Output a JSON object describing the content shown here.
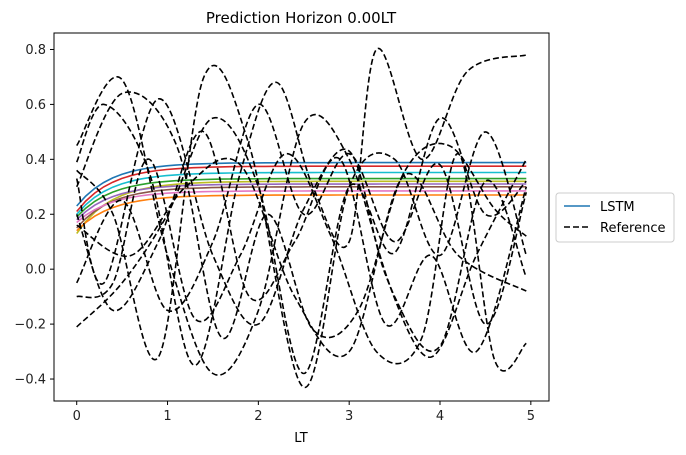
{
  "chart_data": {
    "type": "line",
    "title": "Prediction Horizon 0.00LT",
    "xlabel": "LT",
    "ylabel": "",
    "xlim": [
      -0.25,
      5.2
    ],
    "ylim": [
      -0.48,
      0.86
    ],
    "xticks": [
      0,
      1,
      2,
      3,
      4,
      5
    ],
    "yticks": [
      -0.4,
      -0.2,
      0.0,
      0.2,
      0.4,
      0.6,
      0.8
    ],
    "legend_position": "center-right-outside",
    "legend": [
      {
        "label": "LSTM",
        "color": "#1f77b4",
        "style": "solid"
      },
      {
        "label": "Reference",
        "color": "#000000",
        "style": "dashed"
      }
    ],
    "lstm_series": [
      {
        "color": "#1f77b4",
        "start": 0.23,
        "end": 0.388
      },
      {
        "color": "#d62728",
        "start": 0.21,
        "end": 0.375
      },
      {
        "color": "#17becf",
        "start": 0.2,
        "end": 0.352
      },
      {
        "color": "#2ca02c",
        "start": 0.19,
        "end": 0.33
      },
      {
        "color": "#bcbd22",
        "start": 0.13,
        "end": 0.32
      },
      {
        "color": "#9467bd",
        "start": 0.18,
        "end": 0.31
      },
      {
        "color": "#8c564b",
        "start": 0.15,
        "end": 0.3
      },
      {
        "color": "#e377c2",
        "start": 0.17,
        "end": 0.285
      },
      {
        "color": "#ff7f0e",
        "start": 0.14,
        "end": 0.27
      }
    ],
    "reference_series": [
      {
        "x": [
          0,
          0.5,
          1,
          1.5,
          2,
          2.5,
          3,
          3.5,
          4,
          4.5,
          4.95
        ],
        "y": [
          0.45,
          0.69,
          0.05,
          -0.38,
          -0.15,
          0.53,
          0.4,
          -0.1,
          -0.28,
          0.32,
          -0.03
        ]
      },
      {
        "x": [
          0,
          0.3,
          0.8,
          1.3,
          1.8,
          2.2,
          2.6,
          3.0,
          3.3,
          3.8,
          4.3,
          4.95
        ],
        "y": [
          0.39,
          0.6,
          0.35,
          -0.35,
          0.35,
          0.68,
          0.3,
          0.1,
          0.8,
          0.4,
          0.72,
          0.78
        ]
      },
      {
        "x": [
          0,
          0.4,
          0.9,
          1.4,
          1.9,
          2.5,
          3.0,
          3.5,
          4.0,
          4.5,
          4.95
        ],
        "y": [
          0.36,
          0.2,
          -0.32,
          0.7,
          0.45,
          -0.43,
          0.3,
          0.4,
          0.05,
          0.5,
          0.05
        ]
      },
      {
        "x": [
          0,
          0.3,
          0.9,
          1.5,
          2.0,
          2.5,
          3.0,
          3.4,
          3.9,
          4.4,
          4.95
        ],
        "y": [
          0.33,
          -0.05,
          0.62,
          0.05,
          -0.2,
          0.22,
          0.43,
          -0.02,
          -0.32,
          0.05,
          0.4
        ]
      },
      {
        "x": [
          0,
          0.5,
          1.0,
          1.5,
          2.0,
          2.5,
          3.0,
          3.5,
          4.0,
          4.5,
          4.95
        ],
        "y": [
          -0.21,
          -0.05,
          0.2,
          0.55,
          0.3,
          -0.38,
          0.3,
          0.06,
          0.55,
          0.2,
          0.32
        ]
      },
      {
        "x": [
          0,
          0.4,
          0.8,
          1.3,
          1.8,
          2.3,
          2.8,
          3.3,
          3.8,
          4.2,
          4.6,
          4.95
        ],
        "y": [
          -0.1,
          -0.05,
          0.4,
          -0.18,
          0.05,
          0.42,
          0.12,
          -0.3,
          -0.25,
          0.42,
          -0.33,
          -0.27
        ]
      },
      {
        "x": [
          0,
          0.5,
          1.0,
          1.5,
          2.0,
          2.5,
          3.0,
          3.5,
          4.0,
          4.5,
          4.95
        ],
        "y": [
          -0.05,
          0.25,
          -0.15,
          0.1,
          0.6,
          0.2,
          0.42,
          0.1,
          0.38,
          -0.2,
          0.28
        ]
      },
      {
        "x": [
          0,
          0.6,
          1.2,
          1.8,
          2.4,
          3.0,
          3.6,
          4.2,
          4.95
        ],
        "y": [
          0.16,
          0.05,
          0.3,
          0.38,
          -0.1,
          -0.3,
          0.34,
          0.05,
          -0.08
        ]
      },
      {
        "x": [
          0,
          0.5,
          1.1,
          1.6,
          2.1,
          2.6,
          3.1,
          3.6,
          4.1,
          4.6,
          4.95
        ],
        "y": [
          0.3,
          0.64,
          0.45,
          -0.25,
          0.2,
          -0.22,
          -0.15,
          0.35,
          0.45,
          0.22,
          0.12
        ]
      },
      {
        "x": [
          0,
          0.4,
          0.9,
          1.4,
          1.9,
          2.4,
          2.9,
          3.4,
          3.9,
          4.4,
          4.95
        ],
        "y": [
          0.2,
          -0.15,
          0.1,
          0.5,
          -0.1,
          0.1,
          0.4,
          -0.2,
          0.05,
          -0.3,
          0.3
        ]
      }
    ]
  }
}
